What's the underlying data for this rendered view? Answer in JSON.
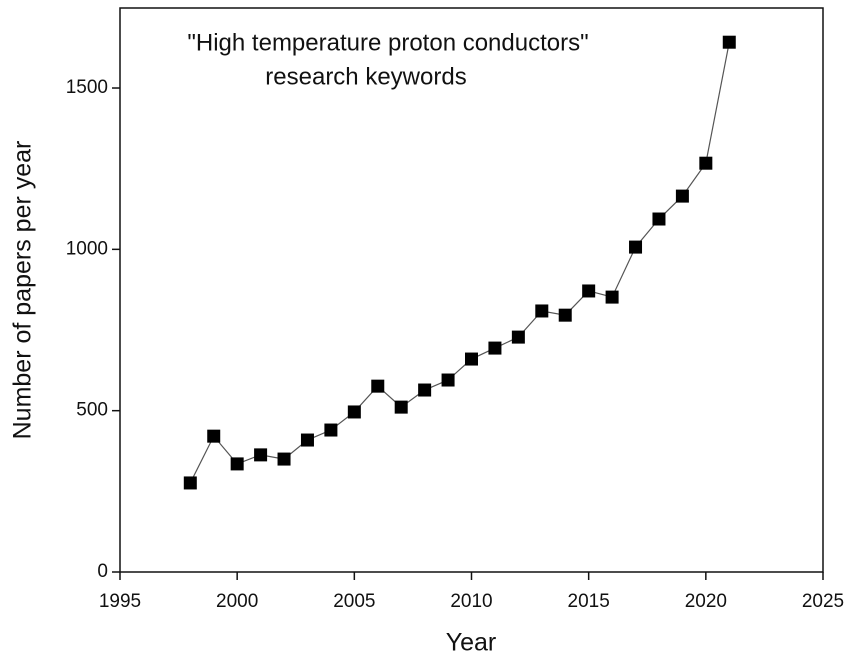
{
  "chart_data": {
    "type": "line",
    "title": [
      "\"High temperature proton conductors\"",
      "research keywords"
    ],
    "x_label": "Year",
    "y_label": "Number of papers per year",
    "x": [
      1998,
      1999,
      2000,
      2001,
      2002,
      2003,
      2004,
      2005,
      2006,
      2007,
      2008,
      2009,
      2010,
      2011,
      2012,
      2013,
      2014,
      2015,
      2016,
      2017,
      2018,
      2019,
      2020,
      2021
    ],
    "series": [
      {
        "color": "#000000",
        "values": [
          276,
          421,
          335,
          363,
          350,
          409,
          440,
          496,
          576,
          511,
          564,
          595,
          660,
          694,
          728,
          809,
          796,
          871,
          852,
          1007,
          1094,
          1165,
          1267,
          1642
        ]
      }
    ],
    "xlim": [
      1995,
      2025
    ],
    "xticks": [
      1995,
      2000,
      2005,
      2010,
      2015,
      2020,
      2025
    ],
    "ylim": [
      0,
      1748
    ],
    "yticks": [
      0,
      500,
      1000,
      1500
    ]
  }
}
